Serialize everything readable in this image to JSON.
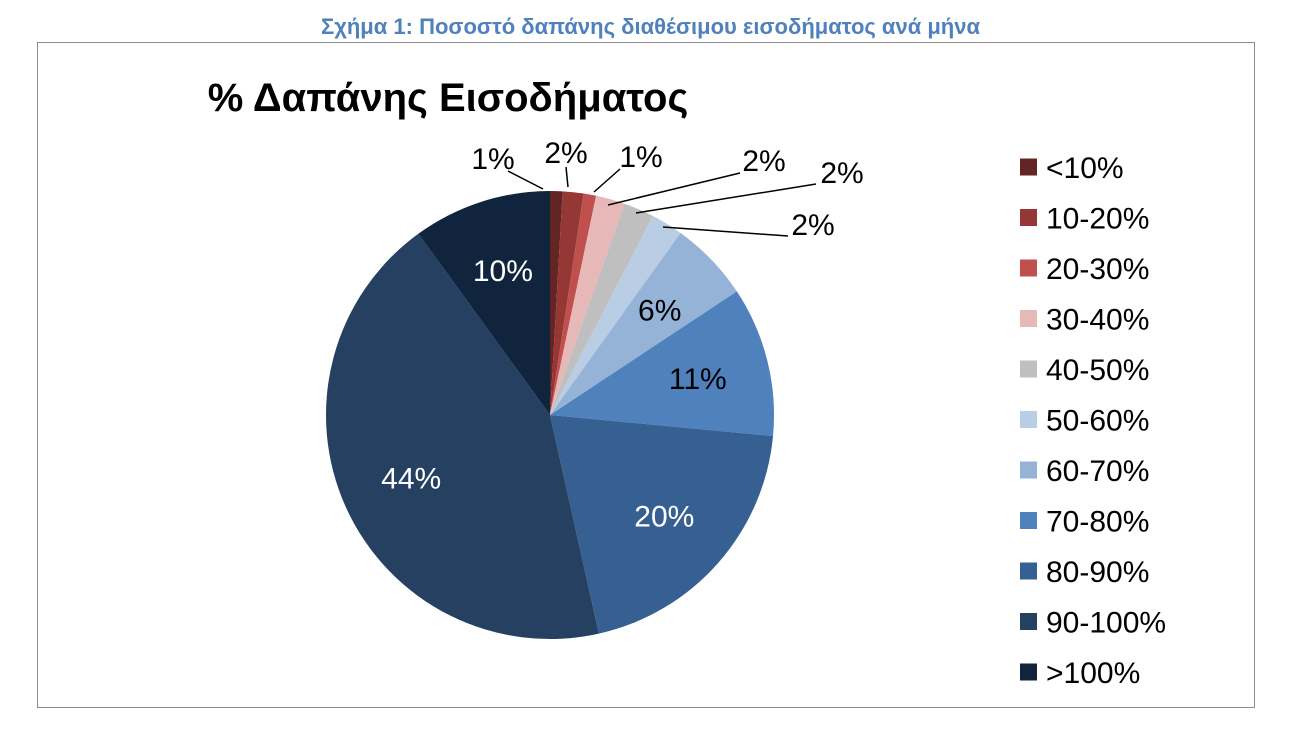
{
  "caption": "Σχήμα 1: Ποσοστό δαπάνης διαθέσιμου εισοδήματος ανά μήνα",
  "chart_data": {
    "type": "pie",
    "title": "% Δαπάνης Εισοδήματος",
    "legend_position": "right",
    "categories": [
      "<10%",
      "10-20%",
      "20-30%",
      "30-40%",
      "40-50%",
      "50-60%",
      "60-70%",
      "70-80%",
      "80-90%",
      "90-100%",
      ">100%"
    ],
    "values": [
      0.9,
      1.5,
      0.9,
      2.1,
      2.2,
      2.3,
      5.8,
      10.8,
      20.0,
      43.5,
      10.0
    ],
    "data_labels": [
      "1%",
      "2%",
      "1%",
      "2%",
      "2%",
      "2%",
      "6%",
      "11%",
      "20%",
      "44%",
      "10%"
    ],
    "colors": [
      "#632523",
      "#953735",
      "#c0504d",
      "#e6b9b8",
      "#bfbfbf",
      "#b9cde5",
      "#95b3d7",
      "#4f81bd",
      "#376092",
      "#254061",
      "#10243e"
    ]
  }
}
